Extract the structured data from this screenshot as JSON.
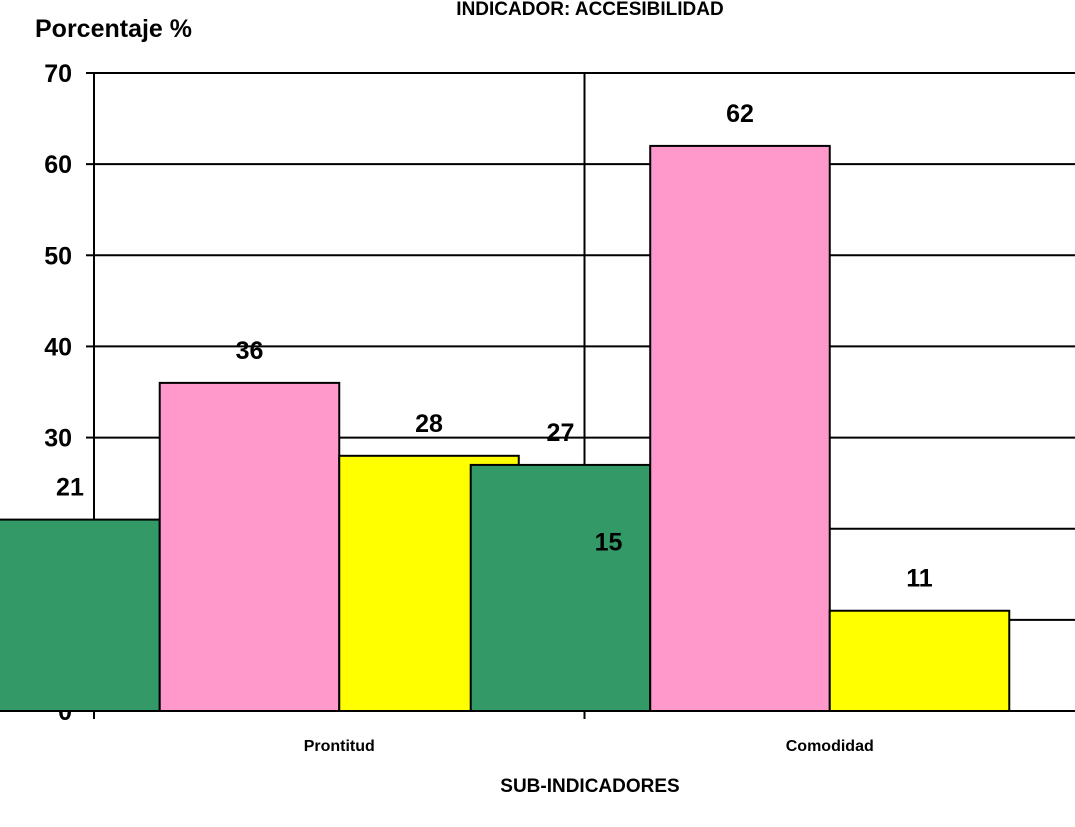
{
  "chart_data": {
    "type": "bar",
    "title": "INDICADOR: ACCESIBILIDAD",
    "ylabel": "Porcentaje %",
    "xlabel": "SUB-INDICADORES",
    "categories": [
      "Prontitud",
      "Comodidad"
    ],
    "ylim": [
      0,
      70
    ],
    "yticks": [
      0,
      10,
      20,
      30,
      40,
      50,
      60,
      70
    ],
    "grid": true,
    "series": [
      {
        "values": [
          21,
          27
        ],
        "color": "#339966"
      },
      {
        "values": [
          36,
          62
        ],
        "color": "#FF99CC"
      },
      {
        "values": [
          28,
          11
        ],
        "color": "#FFFF00"
      },
      {
        "values": [
          15,
          0
        ],
        "color": "#3366FF"
      }
    ]
  }
}
